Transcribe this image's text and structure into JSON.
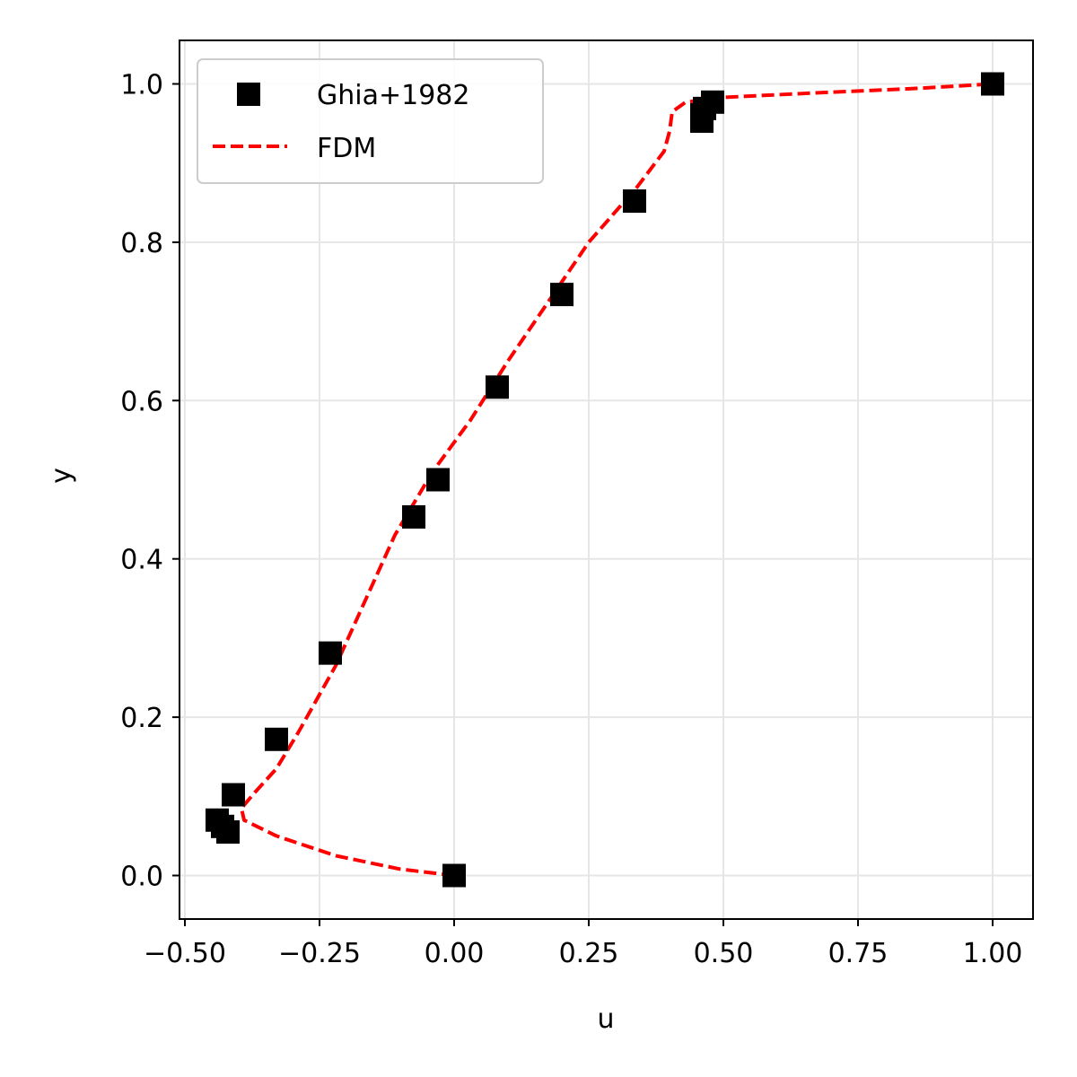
{
  "chart_data": {
    "type": "scatter",
    "xlabel": "u",
    "ylabel": "y",
    "xlim": [
      -0.51,
      1.075
    ],
    "ylim": [
      -0.055,
      1.055
    ],
    "xticks": [
      -0.5,
      -0.25,
      0.0,
      0.25,
      0.5,
      0.75,
      1.0
    ],
    "xtick_labels": [
      "−0.50",
      "−0.25",
      "0.00",
      "0.25",
      "0.50",
      "0.75",
      "1.00"
    ],
    "yticks": [
      0.0,
      0.2,
      0.4,
      0.6,
      0.8,
      1.0
    ],
    "ytick_labels": [
      "0.0",
      "0.2",
      "0.4",
      "0.6",
      "0.8",
      "1.0"
    ],
    "grid": true,
    "legend_position": "top-left",
    "series": [
      {
        "name": "Ghia+1982",
        "kind": "scatter",
        "marker": "square",
        "color": "#000000",
        "points": [
          [
            0.0,
            0.0
          ],
          [
            -0.42,
            0.055
          ],
          [
            -0.43,
            0.062
          ],
          [
            -0.44,
            0.07
          ],
          [
            -0.41,
            0.102
          ],
          [
            -0.33,
            0.172
          ],
          [
            -0.23,
            0.281
          ],
          [
            -0.075,
            0.453
          ],
          [
            -0.03,
            0.5
          ],
          [
            0.08,
            0.617
          ],
          [
            0.2,
            0.734
          ],
          [
            0.335,
            0.852
          ],
          [
            0.46,
            0.953
          ],
          [
            0.46,
            0.961
          ],
          [
            0.465,
            0.969
          ],
          [
            0.48,
            0.977
          ],
          [
            1.0,
            1.0
          ]
        ]
      },
      {
        "name": "FDM",
        "kind": "line",
        "dash": "dashed",
        "color": "#ff0000",
        "points": [
          [
            0.0,
            0.0
          ],
          [
            -0.1,
            0.008
          ],
          [
            -0.22,
            0.025
          ],
          [
            -0.33,
            0.05
          ],
          [
            -0.39,
            0.07
          ],
          [
            -0.395,
            0.085
          ],
          [
            -0.37,
            0.105
          ],
          [
            -0.33,
            0.135
          ],
          [
            -0.29,
            0.18
          ],
          [
            -0.22,
            0.265
          ],
          [
            -0.17,
            0.34
          ],
          [
            -0.11,
            0.43
          ],
          [
            -0.04,
            0.51
          ],
          [
            0.03,
            0.575
          ],
          [
            0.1,
            0.65
          ],
          [
            0.17,
            0.72
          ],
          [
            0.25,
            0.8
          ],
          [
            0.34,
            0.87
          ],
          [
            0.39,
            0.915
          ],
          [
            0.4,
            0.94
          ],
          [
            0.405,
            0.965
          ],
          [
            0.43,
            0.977
          ],
          [
            0.5,
            0.983
          ],
          [
            0.65,
            0.988
          ],
          [
            0.85,
            0.994
          ],
          [
            1.0,
            1.0
          ]
        ]
      }
    ]
  }
}
